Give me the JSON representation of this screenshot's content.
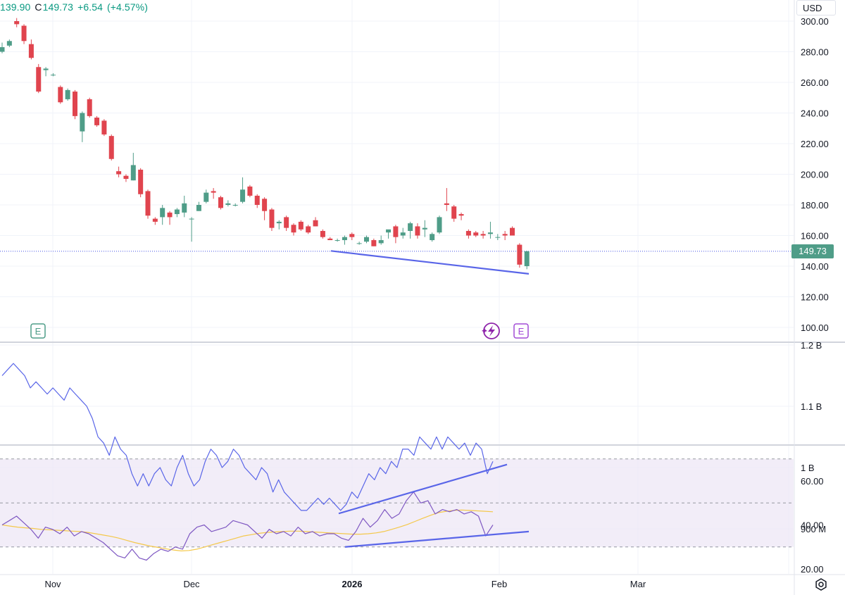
{
  "header": {
    "low_value": "139.90",
    "close_label": "C",
    "close_value": "149.73",
    "change": "+6.54",
    "change_pct": "(+4.57%)"
  },
  "currency": "USD",
  "last_price": "149.73",
  "settings_icon": "gear-icon",
  "colors": {
    "up": "#4f9d88",
    "down": "#e0444e",
    "trendline": "#5965e8",
    "obv_line": "#5965e8",
    "rsi_line": "#7e57c2",
    "rsi_ma": "#f4c84a",
    "rsi_band": "#ede7f6"
  },
  "event_markers": [
    {
      "label": "E",
      "icon": "earnings-icon",
      "date": "2025-10-27"
    },
    {
      "label": "E",
      "icon": "earnings-icon",
      "date": "2026-01-29"
    },
    {
      "label": "",
      "icon": "dividend-lightning-icon",
      "date": "2026-01-28"
    }
  ],
  "chart_data": [
    {
      "type": "candlestick",
      "title": "",
      "x_ticks": [
        "Nov",
        "Dec",
        "2026",
        "Feb",
        "Mar"
      ],
      "y_ticks": [
        "300.00",
        "280.00",
        "260.00",
        "240.00",
        "220.00",
        "200.00",
        "180.00",
        "160.00",
        "140.00",
        "120.00",
        "100.00"
      ],
      "ylim": [
        93,
        302
      ],
      "candles": [
        [
          280,
          286,
          279,
          283
        ],
        [
          284,
          288,
          283,
          287
        ],
        [
          300,
          302,
          296,
          298
        ],
        [
          297,
          298,
          285,
          287
        ],
        [
          285,
          288,
          275,
          276
        ],
        [
          270,
          272,
          253,
          254
        ],
        [
          268,
          270,
          264,
          269
        ],
        [
          265,
          266,
          264,
          265
        ],
        [
          257,
          258,
          246,
          247
        ],
        [
          249,
          256,
          248,
          255
        ],
        [
          254,
          255,
          236,
          238
        ],
        [
          228,
          241,
          221,
          240
        ],
        [
          249,
          250,
          237,
          238
        ],
        [
          237,
          238,
          231,
          232
        ],
        [
          235,
          236,
          225,
          226
        ],
        [
          225,
          226,
          209,
          210
        ],
        [
          202,
          205,
          198,
          200
        ],
        [
          199,
          200,
          195,
          197
        ],
        [
          196,
          214,
          196,
          206
        ],
        [
          203,
          204,
          185,
          187
        ],
        [
          189,
          190,
          171,
          173
        ],
        [
          171,
          172,
          167,
          169
        ],
        [
          172,
          180,
          167,
          178
        ],
        [
          175,
          176,
          167,
          172
        ],
        [
          174,
          178,
          172,
          177
        ],
        [
          175,
          186,
          172,
          181
        ],
        [
          171,
          172,
          156,
          171
        ],
        [
          176,
          182,
          176,
          180
        ],
        [
          182,
          190,
          181,
          188
        ],
        [
          189,
          191,
          184,
          188
        ],
        [
          185,
          186,
          177,
          178
        ],
        [
          180,
          183,
          179,
          181
        ],
        [
          180,
          181,
          179,
          180
        ],
        [
          182,
          198,
          181,
          190
        ],
        [
          192,
          193,
          185,
          186
        ],
        [
          186,
          187,
          178,
          180
        ],
        [
          184,
          185,
          170,
          176
        ],
        [
          177,
          178,
          163,
          165
        ],
        [
          168,
          170,
          164,
          169
        ],
        [
          172,
          173,
          163,
          165
        ],
        [
          167,
          168,
          160,
          162
        ],
        [
          169,
          170,
          163,
          164
        ],
        [
          166,
          167,
          161,
          162
        ],
        [
          170,
          172,
          166,
          166
        ],
        [
          163,
          164,
          158,
          159
        ],
        [
          158,
          159,
          157,
          157
        ],
        [
          157,
          158,
          156,
          157
        ],
        [
          157,
          160,
          154,
          159
        ],
        [
          161,
          162,
          157,
          159
        ],
        [
          155,
          156,
          154,
          155
        ],
        [
          156,
          160,
          155,
          159
        ],
        [
          157,
          158,
          153,
          153
        ],
        [
          155,
          160,
          154,
          157
        ],
        [
          162,
          163,
          158,
          164
        ],
        [
          166,
          167,
          155,
          159
        ],
        [
          160,
          165,
          158,
          162
        ],
        [
          163,
          169,
          158,
          168
        ],
        [
          166,
          168,
          158,
          160
        ],
        [
          164,
          170,
          159,
          165
        ],
        [
          157,
          162,
          156,
          161
        ],
        [
          162,
          173,
          161,
          172
        ],
        [
          181,
          191,
          176,
          180
        ],
        [
          179,
          180,
          169,
          171
        ],
        [
          174,
          175,
          170,
          173
        ],
        [
          163,
          164,
          158,
          160
        ],
        [
          162,
          163,
          159,
          160
        ],
        [
          161,
          163,
          158,
          160
        ],
        [
          161,
          169,
          158,
          162
        ],
        [
          159,
          161,
          157,
          159
        ],
        [
          161,
          163,
          157,
          160
        ],
        [
          165,
          166,
          160,
          160
        ],
        [
          154,
          155,
          139,
          141
        ],
        [
          140,
          150,
          138,
          149.73
        ]
      ],
      "last_price_line": 149.73,
      "trendline": [
        [
          155,
          150
        ],
        [
          196,
          135
        ]
      ]
    },
    {
      "type": "line",
      "title": "",
      "y_ticks": [
        "1.2 B",
        "1.1 B",
        "1 B",
        "900 M"
      ],
      "ylim": [
        0.89,
        1.2
      ],
      "series": [
        {
          "values": [
            1.15,
            1.16,
            1.17,
            1.16,
            1.15,
            1.13,
            1.14,
            1.13,
            1.12,
            1.13,
            1.12,
            1.11,
            1.13,
            1.12,
            1.11,
            1.1,
            1.08,
            1.05,
            1.04,
            1.02,
            1.05,
            1.03,
            1.02,
            0.99,
            0.97,
            0.99,
            0.97,
            0.99,
            1.0,
            0.98,
            0.97,
            1.0,
            1.02,
            0.99,
            0.97,
            0.98,
            1.01,
            1.03,
            1.02,
            1.0,
            1.01,
            1.03,
            1.02,
            1.0,
            0.99,
            0.98,
            1.0,
            0.99,
            0.96,
            0.98,
            0.96,
            0.95,
            0.94,
            0.93,
            0.93,
            0.94,
            0.95,
            0.94,
            0.95,
            0.94,
            0.93,
            0.94,
            0.96,
            0.95,
            0.97,
            0.99,
            0.98,
            1.0,
            0.99,
            1.01,
            1.0,
            1.03,
            1.03,
            1.02,
            1.05,
            1.04,
            1.03,
            1.05,
            1.03,
            1.05,
            1.04,
            1.03,
            1.04,
            1.02,
            1.04,
            1.03,
            0.99,
            1.01
          ]
        }
      ],
      "trendline": [
        [
          0.925,
          1.005
        ]
      ]
    },
    {
      "type": "line",
      "title": "",
      "y_ticks": [
        "60.00",
        "40.00",
        "20.00"
      ],
      "ylim": [
        16,
        75
      ],
      "band": [
        30,
        70
      ],
      "middle_line": 50,
      "series": [
        {
          "values": [
            40,
            42,
            44,
            41,
            38,
            34,
            39,
            38,
            36,
            39,
            35,
            37,
            36,
            34,
            32,
            29,
            26,
            25,
            29,
            25,
            24,
            27,
            29,
            28,
            30,
            29,
            36,
            39,
            40,
            37,
            38,
            39,
            42,
            41,
            40,
            37,
            34,
            38,
            36,
            37,
            35,
            39,
            36,
            37,
            35,
            36,
            36,
            34,
            33,
            37,
            43,
            39,
            42,
            47,
            43,
            45,
            51,
            55,
            50,
            51,
            45,
            47,
            46,
            47,
            45,
            46,
            44,
            35,
            40
          ]
        },
        {
          "values": [
            40,
            39.5,
            39,
            38.7,
            38.4,
            38,
            37.8,
            37.6,
            37.4,
            37.2,
            37,
            36.6,
            36,
            35.4,
            34.8,
            34,
            33,
            32,
            31.2,
            30.4,
            29.8,
            29.2,
            28.6,
            28.2,
            28.4,
            29,
            30,
            31,
            32,
            33,
            34,
            35,
            35.6,
            36.2,
            36.6,
            36.8,
            37,
            37.2,
            37.2,
            37,
            36.8,
            36.6,
            36.4,
            36.2,
            36,
            35.8,
            35.8,
            36,
            36.4,
            37,
            38,
            39,
            40.2,
            41.6,
            43,
            44.4,
            45.6,
            46.2,
            46.6,
            46.8,
            46.6,
            46.4,
            46.2,
            46.0
          ]
        }
      ],
      "trendline": [
        [
          30,
          37
        ]
      ]
    }
  ]
}
